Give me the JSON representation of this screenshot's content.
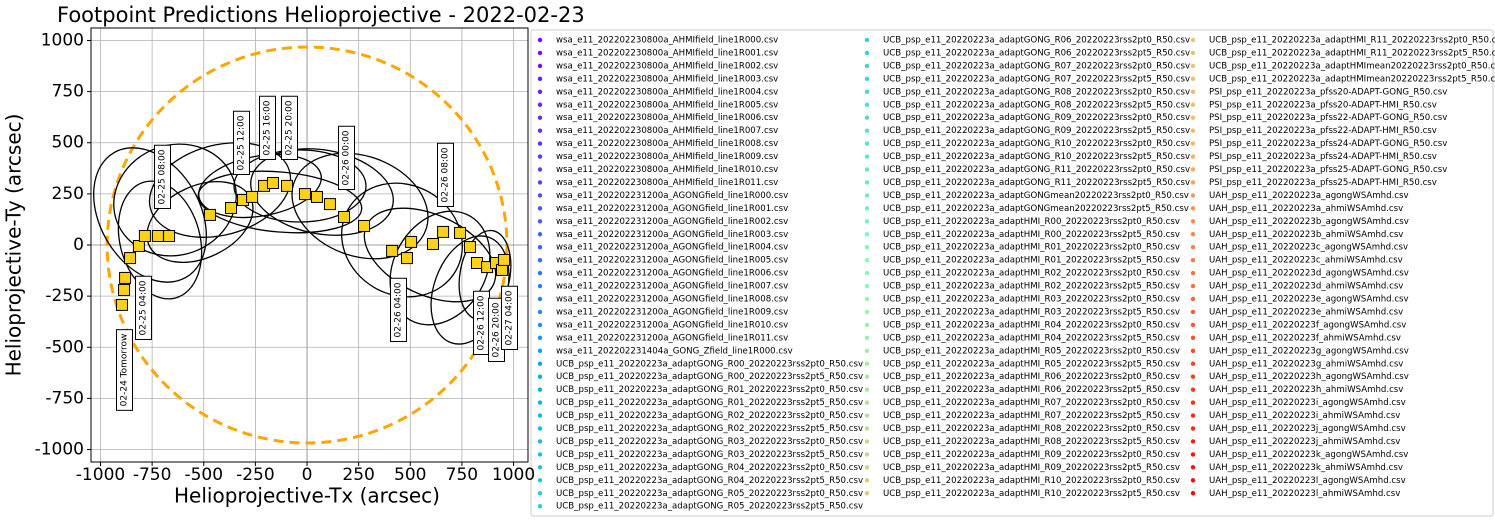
{
  "chart_data": {
    "type": "scatter",
    "title": "Footpoint Predictions Helioprojective - 2022-02-23",
    "x_label": "Helioprojective-Tx (arcsec)",
    "y_label": "Helioprojective-Ty (arcsec)",
    "xlim": [
      -1046,
      1070
    ],
    "ylim": [
      -1061,
      1061
    ],
    "xticks": [
      -1000,
      -750,
      -500,
      -250,
      0,
      250,
      500,
      750,
      1000
    ],
    "yticks": [
      -1000,
      -750,
      -500,
      -250,
      0,
      250,
      500,
      750,
      1000
    ],
    "grid": true,
    "limb": {
      "radius": 968,
      "color": "#ffa500"
    },
    "colormap": [
      "#8000ff",
      "#00b4eb",
      "#80ffb4",
      "#ffb462",
      "#ff0000"
    ],
    "footpoints": {
      "color": "#fcd116",
      "x": [
        -896,
        -886,
        -881,
        -857,
        -814,
        -785,
        -722,
        -668,
        -470,
        -368,
        -310,
        -266,
        -208,
        -165,
        -97,
        -10,
        48,
        111,
        179,
        276,
        412,
        484,
        504,
        610,
        659,
        741,
        789,
        823,
        872,
        915,
        944,
        954
      ],
      "y": [
        -293,
        -220,
        -161,
        -64,
        -5,
        44,
        44,
        44,
        147,
        181,
        220,
        235,
        289,
        303,
        289,
        249,
        235,
        200,
        137,
        93,
        -29,
        -64,
        15,
        5,
        64,
        59,
        -10,
        -88,
        -108,
        -88,
        -122,
        -73
      ]
    },
    "annotations": [
      "02-24 Tomorrow",
      "02-25 04:00",
      "02-25 08:00",
      "02-25 12:00",
      "02-25 16:00",
      "02-25 20:00",
      "02-26 00:00",
      "02-26 04:00",
      "02-26 08:00",
      "02-26 12:00",
      "02-26 20:00",
      "02-27 04:00"
    ],
    "series": [
      {
        "name": "wsa_e11_202202230800a_AHMIfield_line1R000.csv"
      },
      {
        "name": "wsa_e11_202202230800a_AHMIfield_line1R001.csv"
      },
      {
        "name": "wsa_e11_202202230800a_AHMIfield_line1R002.csv"
      },
      {
        "name": "wsa_e11_202202230800a_AHMIfield_line1R003.csv"
      },
      {
        "name": "wsa_e11_202202230800a_AHMIfield_line1R004.csv"
      },
      {
        "name": "wsa_e11_202202230800a_AHMIfield_line1R005.csv"
      },
      {
        "name": "wsa_e11_202202230800a_AHMIfield_line1R006.csv"
      },
      {
        "name": "wsa_e11_202202230800a_AHMIfield_line1R007.csv"
      },
      {
        "name": "wsa_e11_202202230800a_AHMIfield_line1R008.csv"
      },
      {
        "name": "wsa_e11_202202230800a_AHMIfield_line1R009.csv"
      },
      {
        "name": "wsa_e11_202202230800a_AHMIfield_line1R010.csv"
      },
      {
        "name": "wsa_e11_202202230800a_AHMIfield_line1R011.csv"
      },
      {
        "name": "wsa_e11_202202231200a_AGONGfield_line1R000.csv"
      },
      {
        "name": "wsa_e11_202202231200a_AGONGfield_line1R001.csv"
      },
      {
        "name": "wsa_e11_202202231200a_AGONGfield_line1R002.csv"
      },
      {
        "name": "wsa_e11_202202231200a_AGONGfield_line1R003.csv"
      },
      {
        "name": "wsa_e11_202202231200a_AGONGfield_line1R004.csv"
      },
      {
        "name": "wsa_e11_202202231200a_AGONGfield_line1R005.csv"
      },
      {
        "name": "wsa_e11_202202231200a_AGONGfield_line1R006.csv"
      },
      {
        "name": "wsa_e11_202202231200a_AGONGfield_line1R007.csv"
      },
      {
        "name": "wsa_e11_202202231200a_AGONGfield_line1R008.csv"
      },
      {
        "name": "wsa_e11_202202231200a_AGONGfield_line1R009.csv"
      },
      {
        "name": "wsa_e11_202202231200a_AGONGfield_line1R010.csv"
      },
      {
        "name": "wsa_e11_202202231200a_AGONGfield_line1R011.csv"
      },
      {
        "name": "wsa_e11_202202231404a_GONG_Zfield_line1R000.csv"
      },
      {
        "name": "UCB_psp_e11_20220223a_adaptGONG_R00_20220223rss2pt0_R50.csv"
      },
      {
        "name": "UCB_psp_e11_20220223a_adaptGONG_R00_20220223rss2pt5_R50.csv"
      },
      {
        "name": "UCB_psp_e11_20220223a_adaptGONG_R01_20220223rss2pt0_R50.csv"
      },
      {
        "name": "UCB_psp_e11_20220223a_adaptGONG_R01_20220223rss2pt5_R50.csv"
      },
      {
        "name": "UCB_psp_e11_20220223a_adaptGONG_R02_20220223rss2pt0_R50.csv"
      },
      {
        "name": "UCB_psp_e11_20220223a_adaptGONG_R02_20220223rss2pt5_R50.csv"
      },
      {
        "name": "UCB_psp_e11_20220223a_adaptGONG_R03_20220223rss2pt0_R50.csv"
      },
      {
        "name": "UCB_psp_e11_20220223a_adaptGONG_R03_20220223rss2pt5_R50.csv"
      },
      {
        "name": "UCB_psp_e11_20220223a_adaptGONG_R04_20220223rss2pt0_R50.csv"
      },
      {
        "name": "UCB_psp_e11_20220223a_adaptGONG_R04_20220223rss2pt5_R50.csv"
      },
      {
        "name": "UCB_psp_e11_20220223a_adaptGONG_R05_20220223rss2pt0_R50.csv"
      },
      {
        "name": "UCB_psp_e11_20220223a_adaptGONG_R05_20220223rss2pt5_R50.csv"
      },
      {
        "name": "UCB_psp_e11_20220223a_adaptGONG_R06_20220223rss2pt0_R50.csv"
      },
      {
        "name": "UCB_psp_e11_20220223a_adaptGONG_R06_20220223rss2pt5_R50.csv"
      },
      {
        "name": "UCB_psp_e11_20220223a_adaptGONG_R07_20220223rss2pt0_R50.csv"
      },
      {
        "name": "UCB_psp_e11_20220223a_adaptGONG_R07_20220223rss2pt5_R50.csv"
      },
      {
        "name": "UCB_psp_e11_20220223a_adaptGONG_R08_20220223rss2pt0_R50.csv"
      },
      {
        "name": "UCB_psp_e11_20220223a_adaptGONG_R08_20220223rss2pt5_R50.csv"
      },
      {
        "name": "UCB_psp_e11_20220223a_adaptGONG_R09_20220223rss2pt0_R50.csv"
      },
      {
        "name": "UCB_psp_e11_20220223a_adaptGONG_R09_20220223rss2pt5_R50.csv"
      },
      {
        "name": "UCB_psp_e11_20220223a_adaptGONG_R10_20220223rss2pt0_R50.csv"
      },
      {
        "name": "UCB_psp_e11_20220223a_adaptGONG_R10_20220223rss2pt5_R50.csv"
      },
      {
        "name": "UCB_psp_e11_20220223a_adaptGONG_R11_20220223rss2pt0_R50.csv"
      },
      {
        "name": "UCB_psp_e11_20220223a_adaptGONG_R11_20220223rss2pt5_R50.csv"
      },
      {
        "name": "UCB_psp_e11_20220223a_adaptGONGmean20220223rss2pt0_R50.csv"
      },
      {
        "name": "UCB_psp_e11_20220223a_adaptGONGmean20220223rss2pt5_R50.csv"
      },
      {
        "name": "UCB_psp_e11_20220223a_adaptHMI_R00_20220223rss2pt0_R50.csv"
      },
      {
        "name": "UCB_psp_e11_20220223a_adaptHMI_R00_20220223rss2pt5_R50.csv"
      },
      {
        "name": "UCB_psp_e11_20220223a_adaptHMI_R01_20220223rss2pt0_R50.csv"
      },
      {
        "name": "UCB_psp_e11_20220223a_adaptHMI_R01_20220223rss2pt5_R50.csv"
      },
      {
        "name": "UCB_psp_e11_20220223a_adaptHMI_R02_20220223rss2pt0_R50.csv"
      },
      {
        "name": "UCB_psp_e11_20220223a_adaptHMI_R02_20220223rss2pt5_R50.csv"
      },
      {
        "name": "UCB_psp_e11_20220223a_adaptHMI_R03_20220223rss2pt0_R50.csv"
      },
      {
        "name": "UCB_psp_e11_20220223a_adaptHMI_R03_20220223rss2pt5_R50.csv"
      },
      {
        "name": "UCB_psp_e11_20220223a_adaptHMI_R04_20220223rss2pt0_R50.csv"
      },
      {
        "name": "UCB_psp_e11_20220223a_adaptHMI_R04_20220223rss2pt5_R50.csv"
      },
      {
        "name": "UCB_psp_e11_20220223a_adaptHMI_R05_20220223rss2pt0_R50.csv"
      },
      {
        "name": "UCB_psp_e11_20220223a_adaptHMI_R05_20220223rss2pt5_R50.csv"
      },
      {
        "name": "UCB_psp_e11_20220223a_adaptHMI_R06_20220223rss2pt0_R50.csv"
      },
      {
        "name": "UCB_psp_e11_20220223a_adaptHMI_R06_20220223rss2pt5_R50.csv"
      },
      {
        "name": "UCB_psp_e11_20220223a_adaptHMI_R07_20220223rss2pt0_R50.csv"
      },
      {
        "name": "UCB_psp_e11_20220223a_adaptHMI_R07_20220223rss2pt5_R50.csv"
      },
      {
        "name": "UCB_psp_e11_20220223a_adaptHMI_R08_20220223rss2pt0_R50.csv"
      },
      {
        "name": "UCB_psp_e11_20220223a_adaptHMI_R08_20220223rss2pt5_R50.csv"
      },
      {
        "name": "UCB_psp_e11_20220223a_adaptHMI_R09_20220223rss2pt0_R50.csv"
      },
      {
        "name": "UCB_psp_e11_20220223a_adaptHMI_R09_20220223rss2pt5_R50.csv"
      },
      {
        "name": "UCB_psp_e11_20220223a_adaptHMI_R10_20220223rss2pt0_R50.csv"
      },
      {
        "name": "UCB_psp_e11_20220223a_adaptHMI_R10_20220223rss2pt5_R50.csv"
      },
      {
        "name": "UCB_psp_e11_20220223a_adaptHMI_R11_20220223rss2pt0_R50.csv"
      },
      {
        "name": "UCB_psp_e11_20220223a_adaptHMI_R11_20220223rss2pt5_R50.csv"
      },
      {
        "name": "UCB_psp_e11_20220223a_adaptHMImean20220223rss2pt0_R50.csv"
      },
      {
        "name": "UCB_psp_e11_20220223a_adaptHMImean20220223rss2pt5_R50.csv"
      },
      {
        "name": "PSI_psp_e11_20220223a_pfss20-ADAPT-GONG_R50.csv"
      },
      {
        "name": "PSI_psp_e11_20220223a_pfss20-ADAPT-HMI_R50.csv"
      },
      {
        "name": "PSI_psp_e11_20220223a_pfss22-ADAPT-GONG_R50.csv"
      },
      {
        "name": "PSI_psp_e11_20220223a_pfss22-ADAPT-HMI_R50.csv"
      },
      {
        "name": "PSI_psp_e11_20220223a_pfss24-ADAPT-GONG_R50.csv"
      },
      {
        "name": "PSI_psp_e11_20220223a_pfss24-ADAPT-HMI_R50.csv"
      },
      {
        "name": "PSI_psp_e11_20220223a_pfss25-ADAPT-GONG_R50.csv"
      },
      {
        "name": "PSI_psp_e11_20220223a_pfss25-ADAPT-HMI_R50.csv"
      },
      {
        "name": "UAH_psp_e11_20220223a_agongWSAmhd.csv"
      },
      {
        "name": "UAH_psp_e11_20220223a_ahmiWSAmhd.csv"
      },
      {
        "name": "UAH_psp_e11_20220223b_agongWSAmhd.csv"
      },
      {
        "name": "UAH_psp_e11_20220223b_ahmiWSAmhd.csv"
      },
      {
        "name": "UAH_psp_e11_20220223c_agongWSAmhd.csv"
      },
      {
        "name": "UAH_psp_e11_20220223c_ahmiWSAmhd.csv"
      },
      {
        "name": "UAH_psp_e11_20220223d_agongWSAmhd.csv"
      },
      {
        "name": "UAH_psp_e11_20220223d_ahmiWSAmhd.csv"
      },
      {
        "name": "UAH_psp_e11_20220223e_agongWSAmhd.csv"
      },
      {
        "name": "UAH_psp_e11_20220223e_ahmiWSAmhd.csv"
      },
      {
        "name": "UAH_psp_e11_20220223f_agongWSAmhd.csv"
      },
      {
        "name": "UAH_psp_e11_20220223f_ahmiWSAmhd.csv"
      },
      {
        "name": "UAH_psp_e11_20220223g_agongWSAmhd.csv"
      },
      {
        "name": "UAH_psp_e11_20220223g_ahmiWSAmhd.csv"
      },
      {
        "name": "UAH_psp_e11_20220223h_agongWSAmhd.csv"
      },
      {
        "name": "UAH_psp_e11_20220223h_ahmiWSAmhd.csv"
      },
      {
        "name": "UAH_psp_e11_20220223i_agongWSAmhd.csv"
      },
      {
        "name": "UAH_psp_e11_20220223i_ahmiWSAmhd.csv"
      },
      {
        "name": "UAH_psp_e11_20220223j_agongWSAmhd.csv"
      },
      {
        "name": "UAH_psp_e11_20220223j_ahmiWSAmhd.csv"
      },
      {
        "name": "UAH_psp_e11_20220223k_agongWSAmhd.csv"
      },
      {
        "name": "UAH_psp_e11_20220223k_ahmiWSAmhd.csv"
      },
      {
        "name": "UAH_psp_e11_20220223l_agongWSAmhd.csv"
      },
      {
        "name": "UAH_psp_e11_20220223l_ahmiWSAmhd.csv"
      }
    ]
  }
}
